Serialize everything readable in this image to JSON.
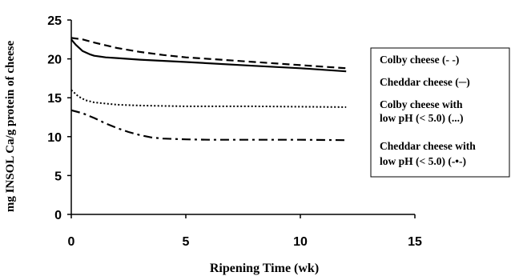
{
  "chart_data": {
    "type": "line",
    "xlabel": "Ripening Time (wk)",
    "ylabel": "mg INSOL Ca/g   protein of cheese",
    "xlim": [
      0,
      15
    ],
    "ylim": [
      0,
      25
    ],
    "x_ticks": [
      0,
      5,
      10,
      15
    ],
    "y_ticks": [
      0,
      5,
      10,
      15,
      20,
      25
    ],
    "grid": false,
    "legend_position": "right",
    "series": [
      {
        "name": "Colby cheese (- -)",
        "legend_lines": [
          "Colby cheese (- -)"
        ],
        "style": "dashed",
        "color": "#000000",
        "x": [
          0,
          0.5,
          1,
          2,
          3,
          4,
          5,
          6,
          8,
          10,
          12
        ],
        "y": [
          22.7,
          22.5,
          22.1,
          21.4,
          20.9,
          20.5,
          20.2,
          20.0,
          19.6,
          19.2,
          18.8
        ]
      },
      {
        "name": "Cheddar cheese (─)",
        "legend_lines": [
          "Cheddar cheese (─)"
        ],
        "style": "solid",
        "color": "#000000",
        "x": [
          0,
          0.2,
          0.5,
          0.8,
          1,
          1.5,
          2,
          3,
          5,
          8,
          10,
          12
        ],
        "y": [
          22.5,
          21.8,
          21.0,
          20.6,
          20.4,
          20.2,
          20.1,
          19.9,
          19.6,
          19.1,
          18.8,
          18.4
        ]
      },
      {
        "name": "Colby cheese with low pH (< 5.0) (...)",
        "legend_lines": [
          "Colby cheese with",
          "low pH (< 5.0) (...)"
        ],
        "style": "dotted",
        "color": "#000000",
        "x": [
          0,
          0.3,
          0.6,
          1,
          2,
          3,
          5,
          8,
          12
        ],
        "y": [
          16.0,
          15.2,
          14.7,
          14.4,
          14.1,
          14.0,
          13.9,
          13.9,
          13.8
        ]
      },
      {
        "name": "Cheddar cheese with low pH (< 5.0) (-•-)",
        "legend_lines": [
          "Cheddar cheese with",
          "low pH (< 5.0) (-•-)"
        ],
        "style": "dashdot",
        "color": "#000000",
        "x": [
          0,
          0.5,
          1,
          1.5,
          2,
          2.5,
          3,
          3.5,
          4,
          5,
          6,
          8,
          10,
          12
        ],
        "y": [
          13.4,
          13.0,
          12.4,
          11.7,
          11.1,
          10.6,
          10.2,
          9.9,
          9.75,
          9.65,
          9.6,
          9.6,
          9.6,
          9.55
        ]
      }
    ]
  }
}
